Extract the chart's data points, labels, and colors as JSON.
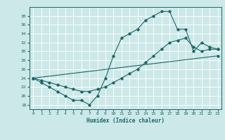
{
  "xlabel": "Humidex (Indice chaleur)",
  "xlim": [
    -0.5,
    23.5
  ],
  "ylim": [
    17,
    40
  ],
  "yticks": [
    18,
    20,
    22,
    24,
    26,
    28,
    30,
    32,
    34,
    36,
    38
  ],
  "xticks": [
    0,
    1,
    2,
    3,
    4,
    5,
    6,
    7,
    8,
    9,
    10,
    11,
    12,
    13,
    14,
    15,
    16,
    17,
    18,
    19,
    20,
    21,
    22,
    23
  ],
  "bg_color": "#cce8e8",
  "line_color": "#1a6868",
  "grid_color": "#ffffff",
  "series1_x": [
    0,
    1,
    2,
    3,
    4,
    5,
    6,
    7,
    8,
    9,
    10,
    11,
    12,
    13,
    14,
    15,
    16,
    17,
    18,
    19,
    20,
    21,
    22,
    23
  ],
  "series1_y": [
    24,
    23,
    22,
    21,
    20,
    19,
    19,
    18,
    20,
    24,
    29,
    33,
    34,
    35,
    37,
    38,
    39,
    39,
    35,
    35,
    30,
    32,
    31,
    30.5
  ],
  "series2_x": [
    0,
    1,
    2,
    3,
    4,
    5,
    6,
    7,
    8,
    9,
    10,
    11,
    12,
    13,
    14,
    15,
    16,
    17,
    18,
    19,
    20,
    21,
    22,
    23
  ],
  "series2_y": [
    24,
    23.5,
    23,
    22.5,
    22,
    21.5,
    21,
    21,
    21.5,
    22,
    23,
    24,
    25,
    26,
    27.5,
    29,
    30.5,
    32,
    32.5,
    33,
    31,
    30,
    30.5,
    30.5
  ],
  "series3_x": [
    0,
    23
  ],
  "series3_y": [
    24,
    29
  ]
}
